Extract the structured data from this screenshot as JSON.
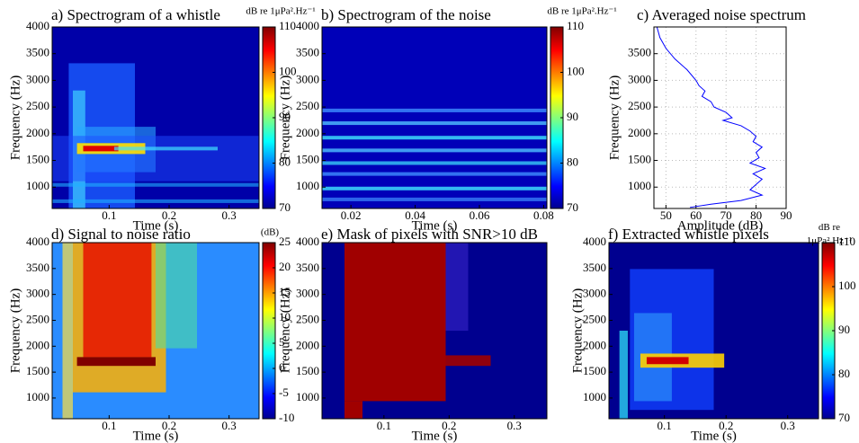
{
  "chart_data": [
    {
      "type": "heatmap",
      "title": "a) Spectrogram of a whistle",
      "x_label": "Time (s)",
      "y_label": "Frequency (Hz)",
      "xlim": [
        0.005,
        0.35
      ],
      "xticks": [
        0.1,
        0.2,
        0.3
      ],
      "ylim": [
        600,
        4000
      ],
      "yticks": [
        1000,
        1500,
        2000,
        2500,
        3000,
        3500,
        4000
      ],
      "colorbar": {
        "label": "dB re 1μPa².Hz⁻¹",
        "lim": [
          70,
          110
        ],
        "ticks": [
          70,
          80,
          90,
          100,
          110
        ]
      }
    },
    {
      "type": "heatmap",
      "title": "b) Spectrogram of the noise",
      "x_label": "Time (s)",
      "y_label": "Frequency (Hz)",
      "xlim": [
        0.011,
        0.081
      ],
      "xticks": [
        0.02,
        0.04,
        0.06,
        0.08
      ],
      "ylim": [
        600,
        4000
      ],
      "yticks": [
        1000,
        1500,
        2000,
        2500,
        3000,
        3500,
        4000
      ],
      "colorbar": {
        "label": "dB re 1μPa².Hz⁻¹",
        "lim": [
          70,
          110
        ],
        "ticks": [
          70,
          80,
          90,
          100,
          110
        ]
      }
    },
    {
      "type": "line",
      "title": "c) Averaged noise spectrum",
      "x_label": "Amplitude (dB)",
      "y_label": "Frequency (Hz)",
      "xlim": [
        46,
        90
      ],
      "xticks": [
        50,
        60,
        70,
        80,
        90
      ],
      "ylim": [
        600,
        4000
      ],
      "yticks": [
        1000,
        1500,
        2000,
        2500,
        3000,
        3500
      ],
      "grid": true,
      "series": [
        {
          "color": "#0000ff",
          "x": [
            47,
            48,
            50,
            53,
            57,
            60,
            61,
            63,
            62,
            65,
            66,
            70,
            72,
            69,
            75,
            78,
            80,
            79,
            82,
            80,
            81,
            78,
            83,
            79,
            82,
            80,
            78,
            82,
            75,
            65,
            58
          ],
          "y": [
            4000,
            3800,
            3600,
            3400,
            3200,
            3000,
            2900,
            2800,
            2700,
            2600,
            2500,
            2400,
            2300,
            2250,
            2150,
            2050,
            1950,
            1850,
            1750,
            1650,
            1550,
            1450,
            1350,
            1250,
            1150,
            1050,
            950,
            850,
            750,
            680,
            620
          ]
        }
      ]
    },
    {
      "type": "heatmap",
      "title": "d) Signal to noise ratio",
      "x_label": "Time (s)",
      "y_label": "Frequency (Hz)",
      "xlim": [
        0.005,
        0.35
      ],
      "xticks": [
        0.1,
        0.2,
        0.3
      ],
      "ylim": [
        600,
        4000
      ],
      "yticks": [
        1000,
        1500,
        2000,
        2500,
        3000,
        3500,
        4000
      ],
      "colorbar": {
        "label": "(dB)",
        "lim": [
          -10,
          25
        ],
        "ticks": [
          -10,
          -5,
          0,
          5,
          10,
          15,
          20,
          25
        ]
      }
    },
    {
      "type": "heatmap",
      "title": "e) Mask of pixels with SNR>10 dB",
      "x_label": "Time (s)",
      "y_label": "Frequency (Hz)",
      "xlim": [
        0.005,
        0.35
      ],
      "xticks": [
        0.1,
        0.2,
        0.3
      ],
      "ylim": [
        600,
        4000
      ],
      "yticks": [
        1000,
        1500,
        2000,
        2500,
        3000,
        3500,
        4000
      ]
    },
    {
      "type": "heatmap",
      "title": "f) Extracted whistle pixels",
      "x_label": "Time (s)",
      "y_label": "Frequency (Hz)",
      "xlim": [
        0.01,
        0.35
      ],
      "xticks": [
        0.1,
        0.2,
        0.3
      ],
      "ylim": [
        600,
        4000
      ],
      "yticks": [
        1000,
        1500,
        2000,
        2500,
        3000,
        3500,
        4000
      ],
      "colorbar": {
        "label": "dB re 1μPa².Hz⁻¹",
        "lim": [
          70,
          110
        ],
        "ticks": [
          70,
          80,
          90,
          100,
          110
        ]
      }
    }
  ]
}
